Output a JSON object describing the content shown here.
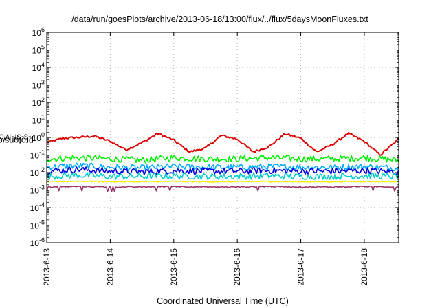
{
  "chart_data": {
    "type": "line",
    "title": "/data/run/goesPlots/archive/2013-06-18/13:00/flux/../flux/5daysMoonFluxes.txt",
    "xlabel": "Coordinated Universal Time (UTC)",
    "ylabel": {
      "prefix": "protons/cm",
      "sup": "2",
      "suffix": "-s-sr-MeV"
    },
    "yscale": "log",
    "ylim": [
      1e-06,
      1000000.0
    ],
    "yticks": [
      {
        "value": 1e-06,
        "base": "10",
        "exp": "-6"
      },
      {
        "value": 1e-05,
        "base": "10",
        "exp": "-5"
      },
      {
        "value": 0.0001,
        "base": "10",
        "exp": "-4"
      },
      {
        "value": 0.001,
        "base": "10",
        "exp": "-3"
      },
      {
        "value": 0.01,
        "base": "10",
        "exp": "-2"
      },
      {
        "value": 0.1,
        "base": "10",
        "exp": "-1"
      },
      {
        "value": 1.0,
        "base": "10",
        "exp": "0"
      },
      {
        "value": 10.0,
        "base": "10",
        "exp": "1"
      },
      {
        "value": 100.0,
        "base": "10",
        "exp": "2"
      },
      {
        "value": 1000.0,
        "base": "10",
        "exp": "3"
      },
      {
        "value": 10000.0,
        "base": "10",
        "exp": "4"
      },
      {
        "value": 100000.0,
        "base": "10",
        "exp": "5"
      },
      {
        "value": 1000000.0,
        "base": "10",
        "exp": "6"
      }
    ],
    "xlim": [
      "2013-06-13T00:00",
      "2013-06-18T13:00"
    ],
    "xticks": [
      {
        "value": "2013-06-13T00:00",
        "label": "2013-6-13"
      },
      {
        "value": "2013-06-14T00:00",
        "label": "2013-6-14"
      },
      {
        "value": "2013-06-15T00:00",
        "label": "2013-6-15"
      },
      {
        "value": "2013-06-16T00:00",
        "label": "2013-6-16"
      },
      {
        "value": "2013-06-17T00:00",
        "label": "2013-6-17"
      },
      {
        "value": "2013-06-18T00:00",
        "label": "2013-6-18"
      }
    ],
    "grid": true,
    "series": [
      {
        "color": "#dd0000",
        "x": [
          "2013-06-13T00:00",
          "2013-06-13T06:00",
          "2013-06-13T12:00",
          "2013-06-13T18:00",
          "2013-06-14T00:00",
          "2013-06-14T06:00",
          "2013-06-14T12:00",
          "2013-06-14T18:00",
          "2013-06-15T00:00",
          "2013-06-15T06:00",
          "2013-06-15T12:00",
          "2013-06-15T18:00",
          "2013-06-16T00:00",
          "2013-06-16T06:00",
          "2013-06-16T12:00",
          "2013-06-16T18:00",
          "2013-06-17T00:00",
          "2013-06-17T06:00",
          "2013-06-17T12:00",
          "2013-06-17T18:00",
          "2013-06-18T00:00",
          "2013-06-18T06:00",
          "2013-06-18T13:00"
        ],
        "y": [
          0.5,
          0.9,
          1.0,
          1.2,
          0.6,
          0.2,
          0.5,
          1.7,
          0.7,
          0.15,
          0.25,
          1.3,
          0.8,
          0.15,
          0.3,
          1.6,
          0.9,
          0.15,
          0.4,
          1.7,
          0.6,
          0.1,
          0.8
        ]
      },
      {
        "color": "#00ee00",
        "x": [
          "2013-06-13T00:00",
          "2013-06-13T12:00",
          "2013-06-14T00:00",
          "2013-06-14T12:00",
          "2013-06-15T00:00",
          "2013-06-15T12:00",
          "2013-06-16T00:00",
          "2013-06-16T12:00",
          "2013-06-17T00:00",
          "2013-06-17T12:00",
          "2013-06-18T00:00",
          "2013-06-18T13:00"
        ],
        "y": [
          0.06,
          0.07,
          0.06,
          0.05,
          0.07,
          0.06,
          0.06,
          0.07,
          0.06,
          0.06,
          0.07,
          0.05
        ]
      },
      {
        "color": "#00aaff",
        "x": [
          "2013-06-13T00:00",
          "2013-06-13T12:00",
          "2013-06-14T00:00",
          "2013-06-14T12:00",
          "2013-06-15T00:00",
          "2013-06-15T12:00",
          "2013-06-16T00:00",
          "2013-06-16T12:00",
          "2013-06-17T00:00",
          "2013-06-17T12:00",
          "2013-06-18T00:00",
          "2013-06-18T13:00"
        ],
        "y": [
          0.02,
          0.025,
          0.02,
          0.018,
          0.022,
          0.02,
          0.02,
          0.022,
          0.02,
          0.02,
          0.022,
          0.018
        ]
      },
      {
        "color": "#0000dd",
        "x": [
          "2013-06-13T00:00",
          "2013-06-13T12:00",
          "2013-06-14T00:00",
          "2013-06-14T12:00",
          "2013-06-15T00:00",
          "2013-06-15T12:00",
          "2013-06-16T00:00",
          "2013-06-16T12:00",
          "2013-06-17T00:00",
          "2013-06-17T12:00",
          "2013-06-18T00:00",
          "2013-06-18T13:00"
        ],
        "y": [
          0.012,
          0.015,
          0.012,
          0.011,
          0.013,
          0.012,
          0.012,
          0.013,
          0.012,
          0.012,
          0.013,
          0.011
        ]
      },
      {
        "color": "#00cccc",
        "x": [
          "2013-06-13T00:00",
          "2013-06-13T12:00",
          "2013-06-14T00:00",
          "2013-06-14T12:00",
          "2013-06-15T00:00",
          "2013-06-15T12:00",
          "2013-06-16T00:00",
          "2013-06-16T12:00",
          "2013-06-17T00:00",
          "2013-06-17T12:00",
          "2013-06-18T00:00",
          "2013-06-18T13:00"
        ],
        "y": [
          0.006,
          0.007,
          0.006,
          0.006,
          0.0065,
          0.006,
          0.006,
          0.0065,
          0.006,
          0.006,
          0.0065,
          0.006
        ]
      },
      {
        "color": "#ffee00",
        "x": [
          "2013-06-13T00:00",
          "2013-06-13T12:00",
          "2013-06-14T00:00",
          "2013-06-14T12:00",
          "2013-06-15T00:00",
          "2013-06-15T12:00",
          "2013-06-16T00:00",
          "2013-06-16T12:00",
          "2013-06-17T00:00",
          "2013-06-17T12:00",
          "2013-06-18T00:00",
          "2013-06-18T13:00"
        ],
        "y": [
          0.003,
          0.0032,
          0.003,
          0.003,
          0.0031,
          0.003,
          0.003,
          0.0031,
          0.003,
          0.003,
          0.0031,
          0.003
        ]
      },
      {
        "color": "#993366",
        "x": [
          "2013-06-13T00:00",
          "2013-06-13T12:00",
          "2013-06-14T00:00",
          "2013-06-14T12:00",
          "2013-06-15T00:00",
          "2013-06-15T12:00",
          "2013-06-16T00:00",
          "2013-06-16T12:00",
          "2013-06-17T00:00",
          "2013-06-17T12:00",
          "2013-06-18T00:00",
          "2013-06-18T13:00"
        ],
        "y": [
          0.0015,
          0.0016,
          0.0015,
          0.0015,
          0.0016,
          0.0015,
          0.0015,
          0.0016,
          0.0015,
          0.0015,
          0.0016,
          0.0015
        ]
      }
    ]
  }
}
